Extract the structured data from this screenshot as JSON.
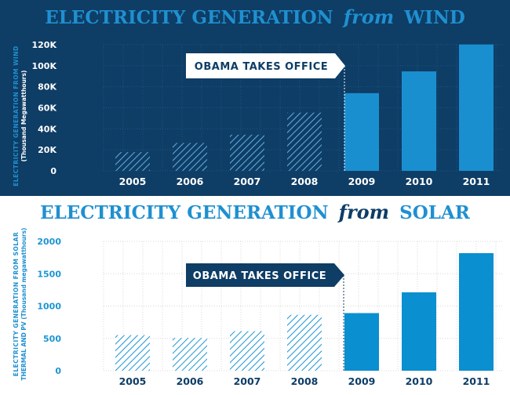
{
  "panels": [
    {
      "title_main": "ELECTRICITY GENERATION",
      "title_from": "from",
      "title_source": "WIND",
      "annotation": "OBAMA TAKES OFFICE",
      "ylabel_line1": "ELECTRICITY GENERATION FROM WIND",
      "ylabel_line2": "(Thousand Megawatthours)"
    },
    {
      "title_main": "ELECTRICITY GENERATION",
      "title_from": "from",
      "title_source": "SOLAR",
      "annotation": "OBAMA TAKES OFFICE",
      "ylabel_line1": "ELECTRICITY GENERATION FROM SOLAR",
      "ylabel_line2": "THERMAL AND PV (Thousand megawatthours)"
    }
  ],
  "colors": {
    "wind_bg": "#0e3d66",
    "wind_bar": "#1a8fd0",
    "wind_hatch": "#5fa8d8",
    "solar_bar": "#0a8fd0",
    "solar_hatch": "#1c95d4",
    "title_blue": "#1f90d0",
    "dark_navy": "#0e3d66",
    "grid_light": "#d8d8d8",
    "solar_axis_text": "#1c95d4"
  },
  "chart_data": [
    {
      "type": "bar",
      "categories": [
        "2005",
        "2006",
        "2007",
        "2008",
        "2009",
        "2010",
        "2011"
      ],
      "values": [
        17800,
        26600,
        34400,
        55400,
        73900,
        94600,
        120200
      ],
      "hatched": [
        true,
        true,
        true,
        true,
        false,
        false,
        false
      ],
      "ylim": [
        0,
        120000
      ],
      "yticks": [
        0,
        20000,
        40000,
        60000,
        80000,
        100000,
        120000
      ],
      "ytick_labels": [
        "0",
        "20K",
        "40K",
        "60K",
        "80K",
        "100K",
        "120K"
      ],
      "title": "ELECTRICITY GENERATION from WIND",
      "ylabel": "ELECTRICITY GENERATION FROM WIND (Thousand Megawatthours)",
      "xlabel": "",
      "annotation": {
        "text": "OBAMA TAKES OFFICE",
        "at_category": "2009"
      }
    },
    {
      "type": "bar",
      "categories": [
        "2005",
        "2006",
        "2007",
        "2008",
        "2009",
        "2010",
        "2011"
      ],
      "values": [
        550,
        508,
        612,
        864,
        891,
        1212,
        1818
      ],
      "hatched": [
        true,
        true,
        true,
        true,
        false,
        false,
        false
      ],
      "ylim": [
        0,
        2000
      ],
      "yticks": [
        0,
        500,
        1000,
        1500,
        2000
      ],
      "ytick_labels": [
        "0",
        "500",
        "1000",
        "1500",
        "2000"
      ],
      "title": "ELECTRICITY GENERATION from SOLAR",
      "ylabel": "ELECTRICITY GENERATION FROM SOLAR THERMAL AND PV (Thousand megawatthours)",
      "xlabel": "",
      "annotation": {
        "text": "OBAMA TAKES OFFICE",
        "at_category": "2009"
      }
    }
  ]
}
